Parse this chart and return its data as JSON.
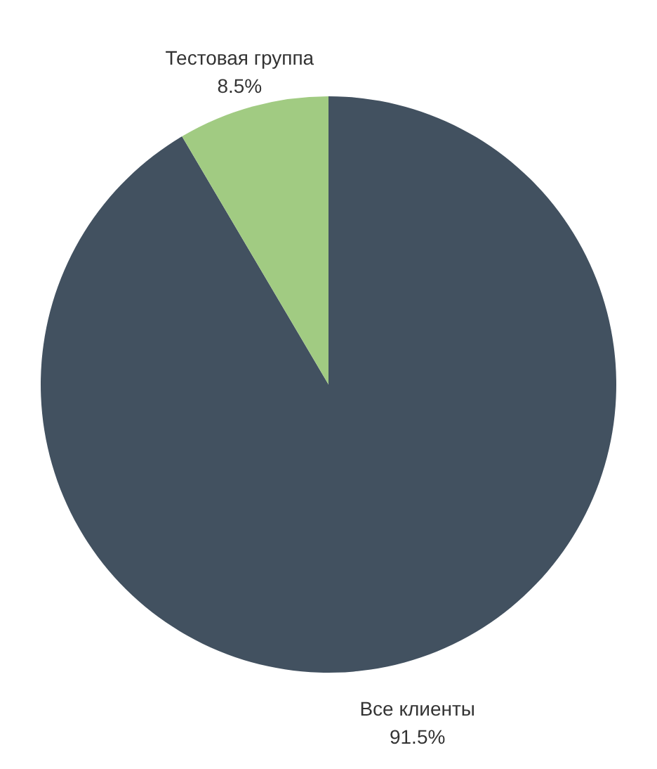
{
  "chart_data": {
    "type": "pie",
    "categories": [
      "Все клиенты",
      "Тестовая группа"
    ],
    "values": [
      91.5,
      8.5
    ],
    "colors": [
      "#425160",
      "#a1cb82"
    ],
    "value_labels": [
      "91.5%",
      "8.5%"
    ]
  }
}
